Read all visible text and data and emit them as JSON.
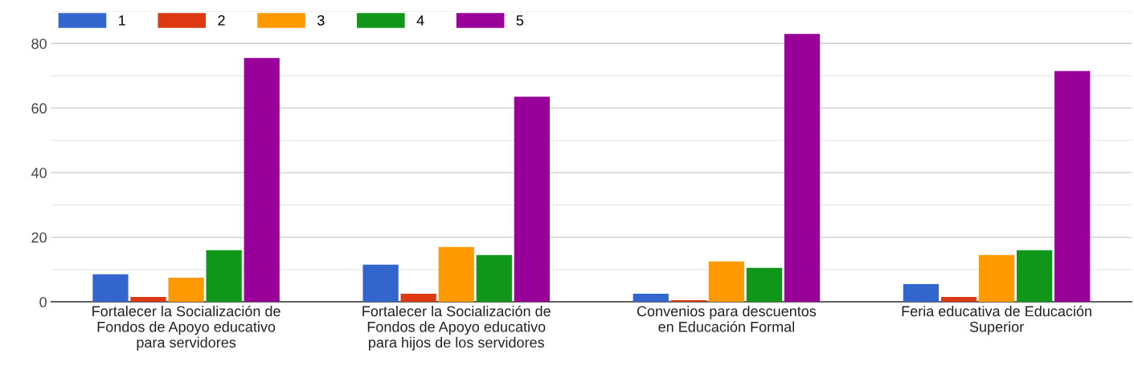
{
  "chart_data": {
    "type": "bar",
    "categories": [
      "Fortalecer la Socialización de\nFondos de Apoyo educativo\npara servidores",
      "Fortalecer la Socialización de\nFondos de Apoyo educativo\npara hijos de los servidores",
      "Convenios para descuentos\nen Educación Formal",
      "Feria educativa de Educación\nSuperior"
    ],
    "series": [
      {
        "name": "1",
        "color": "#3366cc",
        "values": [
          8.5,
          11.5,
          2.5,
          5.5
        ]
      },
      {
        "name": "2",
        "color": "#dc3912",
        "values": [
          1.5,
          2.5,
          0.5,
          1.5
        ]
      },
      {
        "name": "3",
        "color": "#ff9900",
        "values": [
          7.5,
          17,
          12.5,
          14.5
        ]
      },
      {
        "name": "4",
        "color": "#109618",
        "values": [
          16,
          14.5,
          10.5,
          16
        ]
      },
      {
        "name": "5",
        "color": "#990099",
        "values": [
          75.5,
          63.5,
          83,
          71.5
        ]
      }
    ],
    "ylim": [
      0,
      90
    ],
    "yticks": [
      0,
      {
        "value": 10,
        "label": null
      },
      20,
      {
        "value": 30,
        "label": null
      },
      40,
      {
        "value": 50,
        "label": null
      },
      60,
      {
        "value": 70,
        "label": null
      },
      80,
      {
        "value": 90,
        "label": null
      }
    ],
    "grid": "y",
    "legend": "top left"
  }
}
